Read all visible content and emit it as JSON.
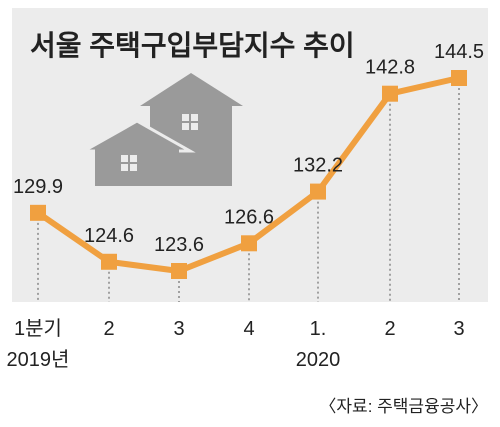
{
  "chart_data": {
    "type": "line",
    "title": "서울 주택구입부담지수 추이",
    "source": "〈자료: 주택금융공사〉",
    "categories": [
      {
        "line1": "1분기",
        "line2": "2019년"
      },
      {
        "line1": "2",
        "line2": ""
      },
      {
        "line1": "3",
        "line2": ""
      },
      {
        "line1": "4",
        "line2": ""
      },
      {
        "line1": "1.",
        "line2": "2020"
      },
      {
        "line1": "2",
        "line2": ""
      },
      {
        "line1": "3",
        "line2": ""
      }
    ],
    "values": [
      129.9,
      124.6,
      123.6,
      126.6,
      132.2,
      142.8,
      144.5
    ],
    "value_labels": [
      "129.9",
      "124.6",
      "123.6",
      "126.6",
      "132.2",
      "142.8",
      "144.5"
    ],
    "ylim": [
      115,
      150
    ],
    "grid": "dotted vertical drop lines",
    "colors": {
      "line": "#f0a040",
      "marker": "#f0a040",
      "panel": "#ececec",
      "text": "#222222",
      "house": "#9a9a9a"
    },
    "icon": "house-icon"
  }
}
